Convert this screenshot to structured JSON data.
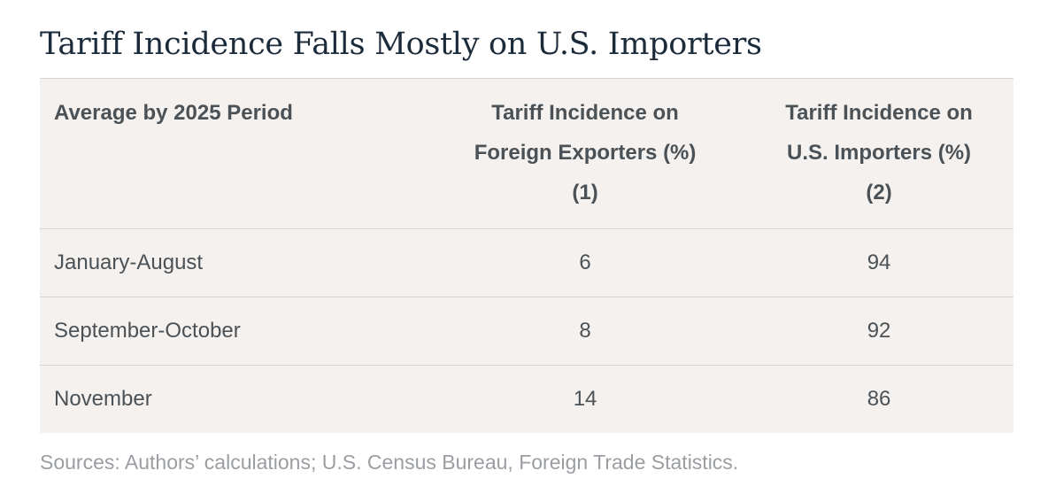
{
  "title": "Tariff Incidence Falls Mostly on U.S. Importers",
  "table": {
    "headers": [
      {
        "lines": [
          "Average by 2025 Period"
        ]
      },
      {
        "lines": [
          "Tariff Incidence on",
          "Foreign Exporters (%)",
          "(1)"
        ]
      },
      {
        "lines": [
          "Tariff Incidence on",
          "U.S. Importers (%)",
          "(2)"
        ]
      }
    ],
    "rows": [
      {
        "period": "January-August",
        "foreign_exporters": "6",
        "us_importers": "94"
      },
      {
        "period": "September-October",
        "foreign_exporters": "8",
        "us_importers": "92"
      },
      {
        "period": "November",
        "foreign_exporters": "14",
        "us_importers": "86"
      }
    ]
  },
  "source": "Sources: Authors’ calculations; U.S. Census Bureau, Foreign Trade Statistics.",
  "colors": {
    "title": "#1c2b3a",
    "table_background": "#f4f1ee",
    "table_text": "#4b5257",
    "row_divider": "#d6d3d0",
    "source_text": "#9a9ea2"
  }
}
